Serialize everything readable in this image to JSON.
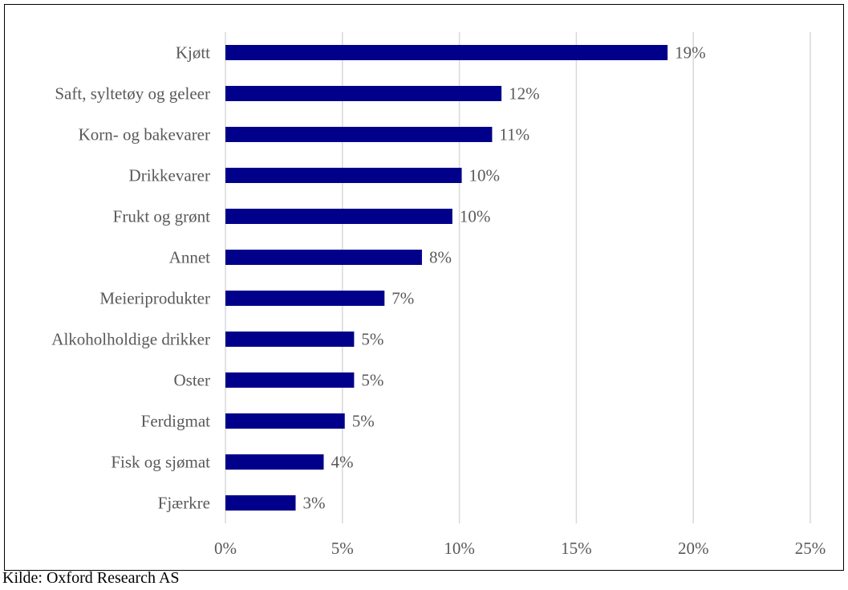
{
  "chart_data": {
    "type": "bar",
    "orientation": "horizontal",
    "categories": [
      "Kjøtt",
      "Saft, syltetøy og geleer",
      "Korn- og bakevarer",
      "Drikkevarer",
      "Frukt og grønt",
      "Annet",
      "Meieriprodukter",
      "Alkoholholdige drikker",
      "Oster",
      "Ferdigmat",
      "Fisk og sjømat",
      "Fjærkre"
    ],
    "values": [
      18.9,
      11.8,
      11.4,
      10.1,
      9.7,
      8.4,
      6.8,
      5.5,
      5.5,
      5.1,
      4.2,
      3.0
    ],
    "data_labels": [
      "19%",
      "12%",
      "11%",
      "10%",
      "10%",
      "8%",
      "7%",
      "5%",
      "5%",
      "5%",
      "4%",
      "3%"
    ],
    "xlim": [
      0,
      25
    ],
    "x_ticks": [
      0,
      5,
      10,
      15,
      20,
      25
    ],
    "x_tick_labels": [
      "0%",
      "5%",
      "10%",
      "15%",
      "20%",
      "25%"
    ],
    "grid": "vertical",
    "legend": "none",
    "bar_color": "#00008B",
    "grid_color": "#D9D9D9"
  },
  "source": "Kilde: Oxford Research AS"
}
